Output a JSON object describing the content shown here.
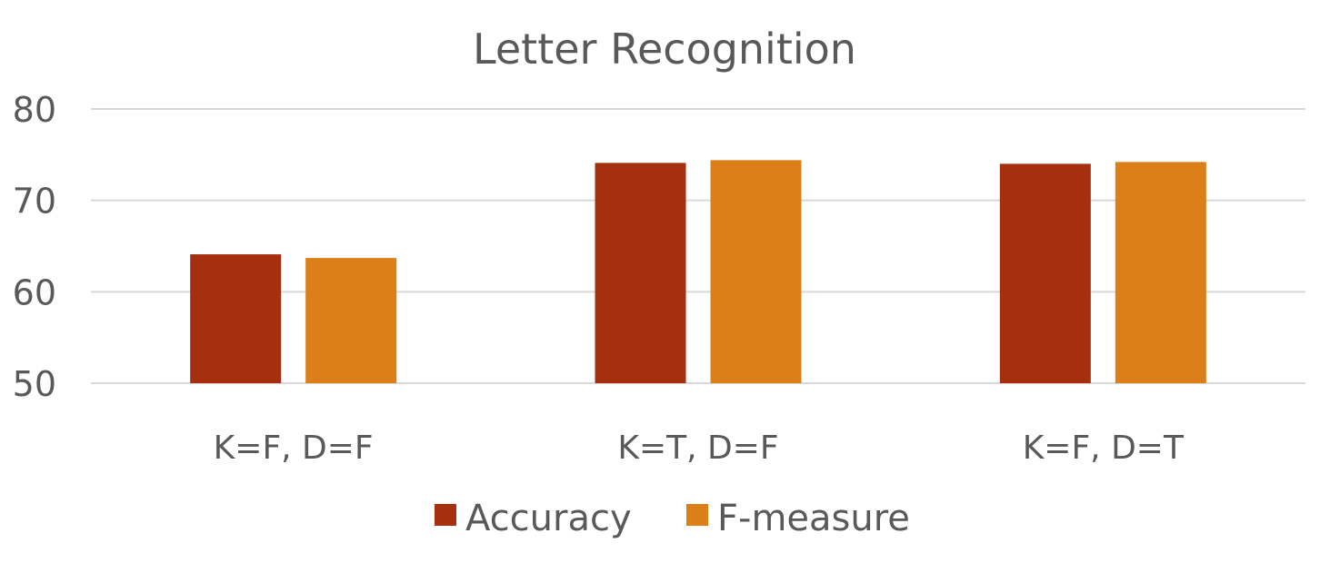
{
  "chart_data": {
    "type": "bar",
    "title": "Letter Recognition",
    "xlabel": "",
    "ylabel": "",
    "categories": [
      "K=F, D=F",
      "K=T, D=F",
      "K=F, D=T"
    ],
    "series": [
      {
        "name": "Accuracy",
        "values": [
          64.1,
          74.1,
          74.0
        ],
        "color": "#a52f0f"
      },
      {
        "name": "F-measure",
        "values": [
          63.7,
          74.4,
          74.2
        ],
        "color": "#dc7f19"
      }
    ],
    "ylim": [
      50,
      80
    ],
    "yticks": [
      50,
      60,
      70,
      80
    ],
    "grid": true,
    "legend_position": "bottom"
  }
}
